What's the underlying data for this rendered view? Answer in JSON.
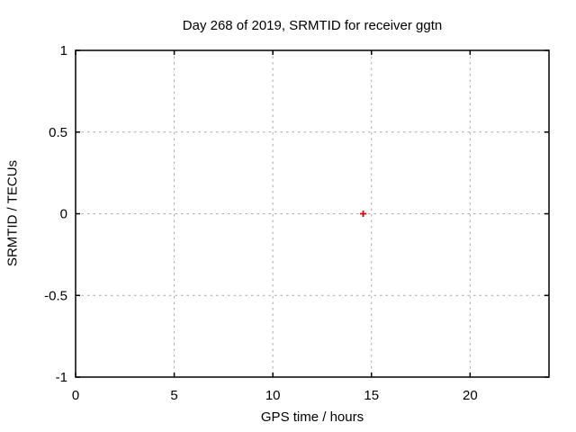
{
  "window": {
    "background_color": "#ffffff",
    "text_color": "#000000"
  },
  "chart_data": {
    "type": "scatter",
    "title": "Day 268 of 2019, SRMTID for receiver ggtn",
    "xlabel": "GPS time / hours",
    "ylabel": "SRMTID / TECUs",
    "xlim": [
      0,
      24
    ],
    "ylim": [
      -1,
      1
    ],
    "xticks": [
      0,
      5,
      10,
      15,
      20
    ],
    "yticks": [
      -1,
      -0.5,
      0,
      0.5,
      1
    ],
    "x_tick_labels": [
      "0",
      "5",
      "10",
      "15",
      "20"
    ],
    "y_tick_labels": [
      "-1",
      "-0.5",
      "0",
      "0.5",
      "1"
    ],
    "grid": {
      "visible": true,
      "style": "dashed",
      "color": "#a8a8a8",
      "x_lines": [
        5,
        10,
        15,
        20
      ],
      "y_lines": [
        -0.5,
        0,
        0.5
      ]
    },
    "border_color": "#000000",
    "tick_color": "#000000",
    "legend": {
      "visible": false
    },
    "series": [
      {
        "marker": "plus",
        "color": "#e00000",
        "points": [
          {
            "x": 14.58,
            "y": 0.0
          }
        ]
      }
    ]
  }
}
